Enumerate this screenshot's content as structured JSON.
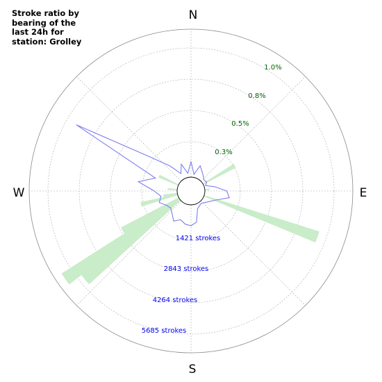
{
  "title": "Stroke ratio by bearing of the last 24h for station: Grolley",
  "compass": {
    "north": "N",
    "east": "E",
    "south": "S",
    "west": "W"
  },
  "colors": {
    "ratio_fill": "#c9ecc9",
    "strokes_line": "#7c7cf0",
    "ratio_label": "#006400",
    "stroke_label": "#0000ee",
    "grid": "#aaaaaa"
  },
  "chart_data": {
    "type": "polar",
    "grid": true,
    "ratio_axis": {
      "labels": [
        "0.3%",
        "0.5%",
        "0.8%",
        "1.0%"
      ],
      "max": 1.25
    },
    "strokes_axis": {
      "labels": [
        "1421 strokes",
        "2843 strokes",
        "4264 strokes",
        "5685 strokes"
      ],
      "ticks": [
        1421,
        2843,
        4264,
        5685
      ],
      "max": 7106
    },
    "series": [
      {
        "kind": "ratio",
        "bin_deg": 5,
        "bins": [
          {
            "bearing": 60,
            "value": 0.31
          },
          {
            "bearing": 85,
            "value": 0.04
          },
          {
            "bearing": 110,
            "value": 1.02
          },
          {
            "bearing": 230,
            "value": 1.05
          },
          {
            "bearing": 235,
            "value": 1.18
          },
          {
            "bearing": 240,
            "value": 0.55
          },
          {
            "bearing": 255,
            "value": 0.32
          },
          {
            "bearing": 260,
            "value": 0.12
          },
          {
            "bearing": 275,
            "value": 0.08
          },
          {
            "bearing": 295,
            "value": 0.18
          }
        ]
      },
      {
        "kind": "strokes",
        "step_deg": 10,
        "values": [
          750,
          150,
          620,
          400,
          250,
          150,
          200,
          80,
          500,
          1050,
          1200,
          600,
          350,
          200,
          100,
          150,
          250,
          850,
          1000,
          950,
          800,
          1000,
          750,
          600,
          700,
          950,
          800,
          1100,
          1900,
          1150,
          5700,
          1850,
          900,
          300,
          700,
          200
        ]
      }
    ]
  }
}
